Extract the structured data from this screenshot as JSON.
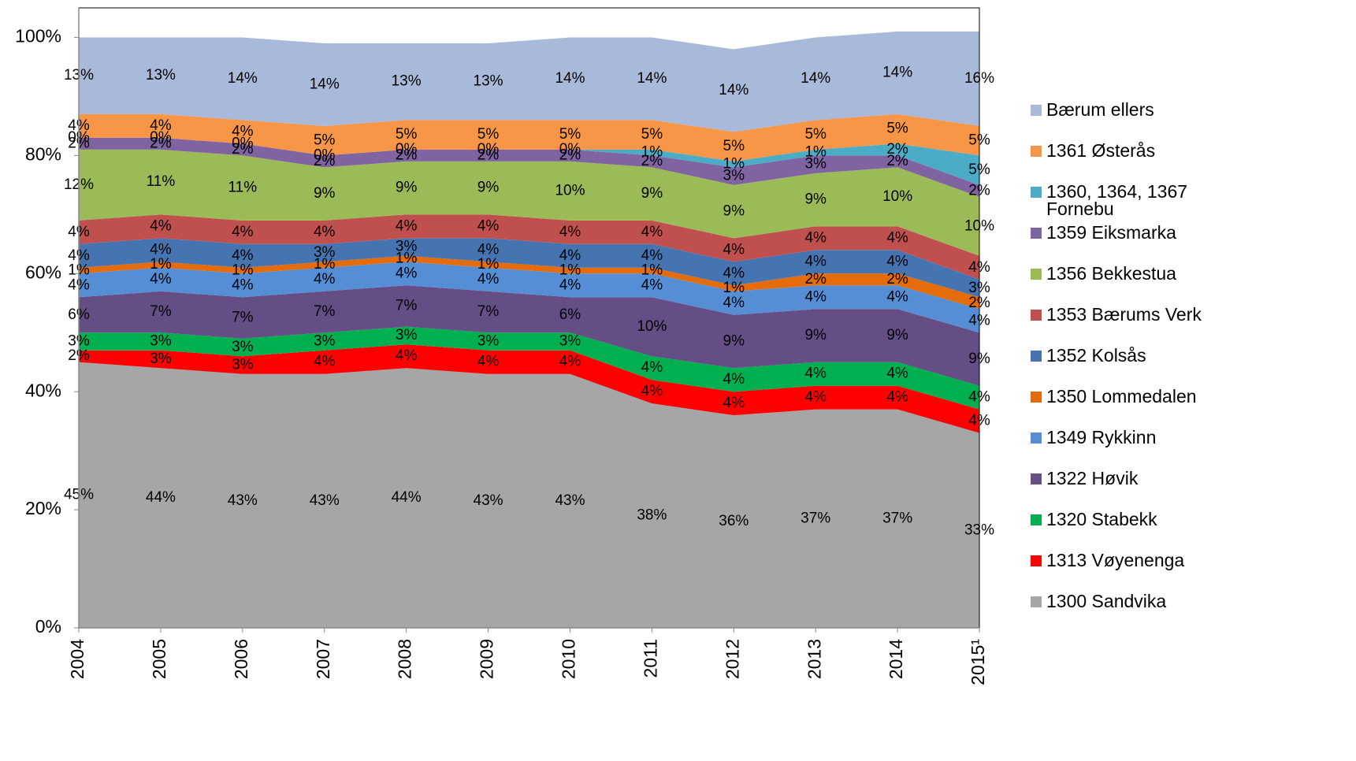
{
  "chart_data": {
    "type": "stacked_area",
    "categories": [
      "2004",
      "2005",
      "2006",
      "2007",
      "2008",
      "2009",
      "2010",
      "2011",
      "2012",
      "2013",
      "2014",
      "2015¹"
    ],
    "ylim": [
      0,
      105
    ],
    "yticks": [
      {
        "value": 0,
        "label": "0%"
      },
      {
        "value": 20,
        "label": "20%"
      },
      {
        "value": 40,
        "label": "40%"
      },
      {
        "value": 60,
        "label": "60%"
      },
      {
        "value": 80,
        "label": "80%"
      },
      {
        "value": 100,
        "label": "100%"
      }
    ],
    "series": [
      {
        "name": "1300 Sandvika",
        "color": "#a6a6a6",
        "values": [
          45,
          44,
          43,
          43,
          44,
          43,
          43,
          38,
          36,
          37,
          37,
          33
        ],
        "value_labels": [
          "45%",
          "44%",
          "43%",
          "43%",
          "44%",
          "43%",
          "43%",
          "38%",
          "36%",
          "37%",
          "37%",
          "33%"
        ]
      },
      {
        "name": "1313 Vøyenenga",
        "color": "#ff0000",
        "values": [
          2,
          3,
          3,
          4,
          4,
          4,
          4,
          4,
          4,
          4,
          4,
          4
        ],
        "value_labels": [
          "2%",
          "3%",
          "3%",
          "4%",
          "4%",
          "4%",
          "4%",
          "4%",
          "4%",
          "4%",
          "4%",
          "4%"
        ]
      },
      {
        "name": "1320 Stabekk",
        "color": "#00b050",
        "values": [
          3,
          3,
          3,
          3,
          3,
          3,
          3,
          4,
          4,
          4,
          4,
          4
        ],
        "value_labels": [
          "3%",
          "3%",
          "3%",
          "3%",
          "3%",
          "3%",
          "3%",
          "4%",
          "4%",
          "4%",
          "4%",
          "4%"
        ]
      },
      {
        "name": "1322 Høvik",
        "color": "#654d85",
        "values": [
          6,
          7,
          7,
          7,
          7,
          7,
          6,
          10,
          9,
          9,
          9,
          9
        ],
        "value_labels": [
          "6%",
          "7%",
          "7%",
          "7%",
          "7%",
          "7%",
          "6%",
          "10%",
          "9%",
          "9%",
          "9%",
          "9%"
        ]
      },
      {
        "name": "1349 Rykkinn",
        "color": "#558ed5",
        "values": [
          4,
          4,
          4,
          4,
          4,
          4,
          4,
          4,
          4,
          4,
          4,
          4
        ],
        "value_labels": [
          "4%",
          "4%",
          "4%",
          "4%",
          "4%",
          "4%",
          "4%",
          "4%",
          "4%",
          "4%",
          "4%",
          "4%"
        ]
      },
      {
        "name": "1350 Lommedalen",
        "color": "#e46c0a",
        "values": [
          1,
          1,
          1,
          1,
          1,
          1,
          1,
          1,
          1,
          2,
          2,
          2
        ],
        "value_labels": [
          "1%",
          "1%",
          "1%",
          "1%",
          "1%",
          "1%",
          "1%",
          "1%",
          "1%",
          "2%",
          "2%",
          "2%"
        ]
      },
      {
        "name": "1352 Kolsås",
        "color": "#4674b1",
        "values": [
          4,
          4,
          4,
          3,
          3,
          4,
          4,
          4,
          4,
          4,
          4,
          3
        ],
        "value_labels": [
          "4%",
          "4%",
          "4%",
          "3%",
          "3%",
          "4%",
          "4%",
          "4%",
          "4%",
          "4%",
          "4%",
          "3%"
        ]
      },
      {
        "name": "1353 Bærums Verk",
        "color": "#c0504d",
        "values": [
          4,
          4,
          4,
          4,
          4,
          4,
          4,
          4,
          4,
          4,
          4,
          4
        ],
        "value_labels": [
          "4%",
          "4%",
          "4%",
          "4%",
          "4%",
          "4%",
          "4%",
          "4%",
          "4%",
          "4%",
          "4%",
          "4%"
        ]
      },
      {
        "name": "1356 Bekkestua",
        "color": "#9bbb59",
        "values": [
          12,
          11,
          11,
          9,
          9,
          9,
          10,
          9,
          9,
          9,
          10,
          10
        ],
        "value_labels": [
          "12%",
          "11%",
          "11%",
          "9%",
          "9%",
          "9%",
          "10%",
          "9%",
          "9%",
          "9%",
          "10%",
          "10%"
        ]
      },
      {
        "name": "1359 Eiksmarka",
        "color": "#8064a2",
        "values": [
          2,
          2,
          2,
          2,
          2,
          2,
          2,
          2,
          3,
          3,
          2,
          2
        ],
        "value_labels": [
          "2%",
          "2%",
          "2%",
          "2%",
          "2%",
          "2%",
          "2%",
          "2%",
          "3%",
          "3%",
          "2%",
          "2%"
        ]
      },
      {
        "name": "1360, 1364, 1367 Fornebu",
        "color": "#4bacc6",
        "values": [
          0,
          0,
          0,
          0,
          0,
          0,
          0,
          1,
          1,
          1,
          2,
          5
        ],
        "value_labels": [
          "0%",
          "0%",
          "0%",
          "0%",
          "0%",
          "0%",
          "0%",
          "1%",
          "1%",
          "1%",
          "2%",
          "5%"
        ]
      },
      {
        "name": "1361 Østerås",
        "color": "#f79646",
        "values": [
          4,
          4,
          4,
          5,
          5,
          5,
          5,
          5,
          5,
          5,
          5,
          5
        ],
        "value_labels": [
          "4%",
          "4%",
          "4%",
          "5%",
          "5%",
          "5%",
          "5%",
          "5%",
          "5%",
          "5%",
          "5%",
          "5%"
        ]
      },
      {
        "name": "Bærum ellers",
        "color": "#a9b9d9",
        "values": [
          13,
          13,
          14,
          14,
          13,
          13,
          14,
          14,
          14,
          14,
          14,
          16
        ],
        "value_labels": [
          "13%",
          "13%",
          "14%",
          "14%",
          "13%",
          "13%",
          "14%",
          "14%",
          "14%",
          "14%",
          "14%",
          "16%"
        ]
      }
    ]
  }
}
